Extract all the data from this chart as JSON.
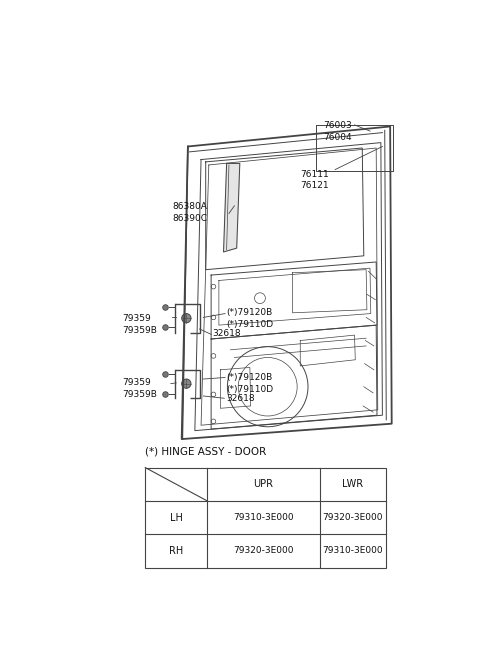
{
  "bg_color": "#ffffff",
  "title": "(*) HINGE ASSY - DOOR",
  "table": {
    "headers": [
      "",
      "UPR",
      "LWR"
    ],
    "rows": [
      [
        "LH",
        "79310-3E000",
        "79320-3E000"
      ],
      [
        "RH",
        "79320-3E000",
        "79310-3E000"
      ]
    ]
  },
  "line_color": "#444444",
  "font_color": "#111111"
}
